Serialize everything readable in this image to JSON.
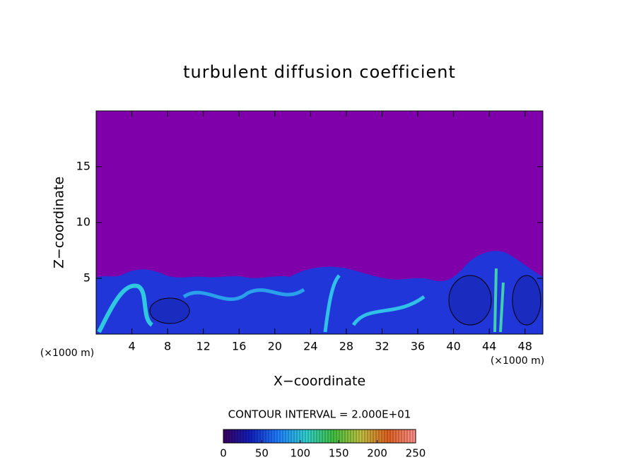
{
  "chart_data": {
    "type": "contour",
    "title": "turbulent diffusion coefficient",
    "xlabel": "X−coordinate",
    "ylabel": "Z−coordinate",
    "xunit": "(×1000 m)",
    "yunit": "(×1000 m)",
    "xlim": [
      0,
      50
    ],
    "xticks": [
      4,
      8,
      12,
      16,
      20,
      24,
      28,
      32,
      36,
      40,
      44,
      48
    ],
    "ylim": [
      0,
      20
    ],
    "yticks": [
      5,
      10,
      15
    ],
    "background_color": "#7f00aa",
    "contour_note": "CONTOUR INTERVAL = 2.000E+01",
    "colorbar": {
      "lim": [
        0,
        250
      ],
      "ticks": [
        0,
        50,
        100,
        150,
        200,
        250
      ],
      "colors": [
        "#3a0060",
        "#1020c0",
        "#2080ff",
        "#30d0d0",
        "#40c040",
        "#c0c040",
        "#e06020",
        "#ff9090"
      ]
    }
  }
}
